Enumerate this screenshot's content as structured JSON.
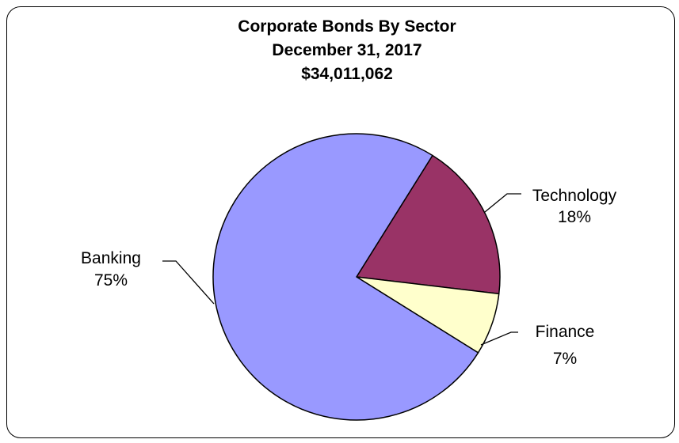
{
  "chart_data": {
    "type": "pie",
    "title": "Corporate Bonds By Sector",
    "subtitle": "December 31, 2017",
    "total": "$34,011,062",
    "slices": [
      {
        "name": "Technology",
        "label": "18%",
        "value": 18,
        "color": "#993366"
      },
      {
        "name": "Finance",
        "label": "7%",
        "value": 7,
        "color": "#FFFFCC"
      },
      {
        "name": "Banking",
        "label": "75%",
        "value": 75,
        "color": "#9999FF"
      }
    ],
    "start_angle_deg": 32,
    "legend": "none"
  }
}
